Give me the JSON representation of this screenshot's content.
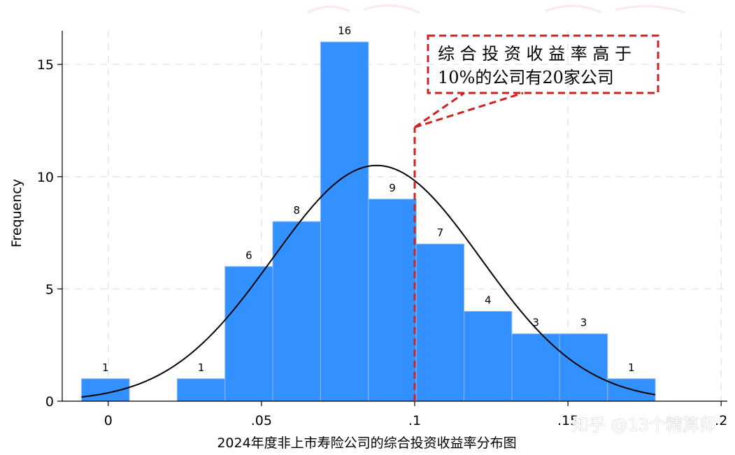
{
  "chart_data": {
    "type": "bar",
    "subtype": "histogram",
    "xlabel": "2024年度非上市寿险公司的综合投资收益率分布图",
    "ylabel": "Frequency",
    "xlim": [
      -0.015,
      0.202
    ],
    "ylim": [
      0,
      16.5
    ],
    "x_ticks": [
      0,
      0.05,
      0.1,
      0.15,
      0.2
    ],
    "x_tick_labels": [
      "0",
      ".05",
      ".1",
      ".15",
      ".2"
    ],
    "y_ticks": [
      0,
      5,
      10,
      15
    ],
    "y_tick_labels": [
      "0",
      "5",
      "10",
      "15"
    ],
    "grid": true,
    "bins": [
      {
        "start": -0.0087,
        "end": 0.0069,
        "count": 1
      },
      {
        "start": 0.0069,
        "end": 0.0225,
        "count": 0
      },
      {
        "start": 0.0225,
        "end": 0.0381,
        "count": 1
      },
      {
        "start": 0.0381,
        "end": 0.0537,
        "count": 6
      },
      {
        "start": 0.0537,
        "end": 0.0693,
        "count": 8
      },
      {
        "start": 0.0693,
        "end": 0.0849,
        "count": 16
      },
      {
        "start": 0.0849,
        "end": 0.1005,
        "count": 9
      },
      {
        "start": 0.1005,
        "end": 0.1161,
        "count": 7
      },
      {
        "start": 0.1161,
        "end": 0.1317,
        "count": 4
      },
      {
        "start": 0.1317,
        "end": 0.1473,
        "count": 3
      },
      {
        "start": 0.1473,
        "end": 0.1629,
        "count": 3
      },
      {
        "start": 0.1629,
        "end": 0.1785,
        "count": 1
      }
    ],
    "bar_labels": [
      "1",
      "",
      "1",
      "6",
      "8",
      "16",
      "9",
      "7",
      "4",
      "3",
      "3",
      "1"
    ],
    "normal_curve": {
      "mean": 0.0876,
      "sd": 0.0339,
      "peak": 10.5,
      "x_range": [
        -0.0087,
        0.1785
      ]
    },
    "reference_line": {
      "x": 0.1,
      "y_top": 12.2,
      "style": "dashed",
      "color": "#cc2222"
    },
    "annotation": {
      "lines": [
        "综 合 投 资 收 益 率 高 于",
        "10%的公司有20家公司"
      ],
      "border_color": "#cc2222",
      "position": "top-right"
    },
    "colors": {
      "bar_fill": "#3391ff",
      "bar_edge": "#8ab8f0",
      "curve": "#000000",
      "grid": "#e6e6e6",
      "reference": "#cc2222"
    }
  },
  "watermark": {
    "text": "知乎 @13个精算师"
  }
}
